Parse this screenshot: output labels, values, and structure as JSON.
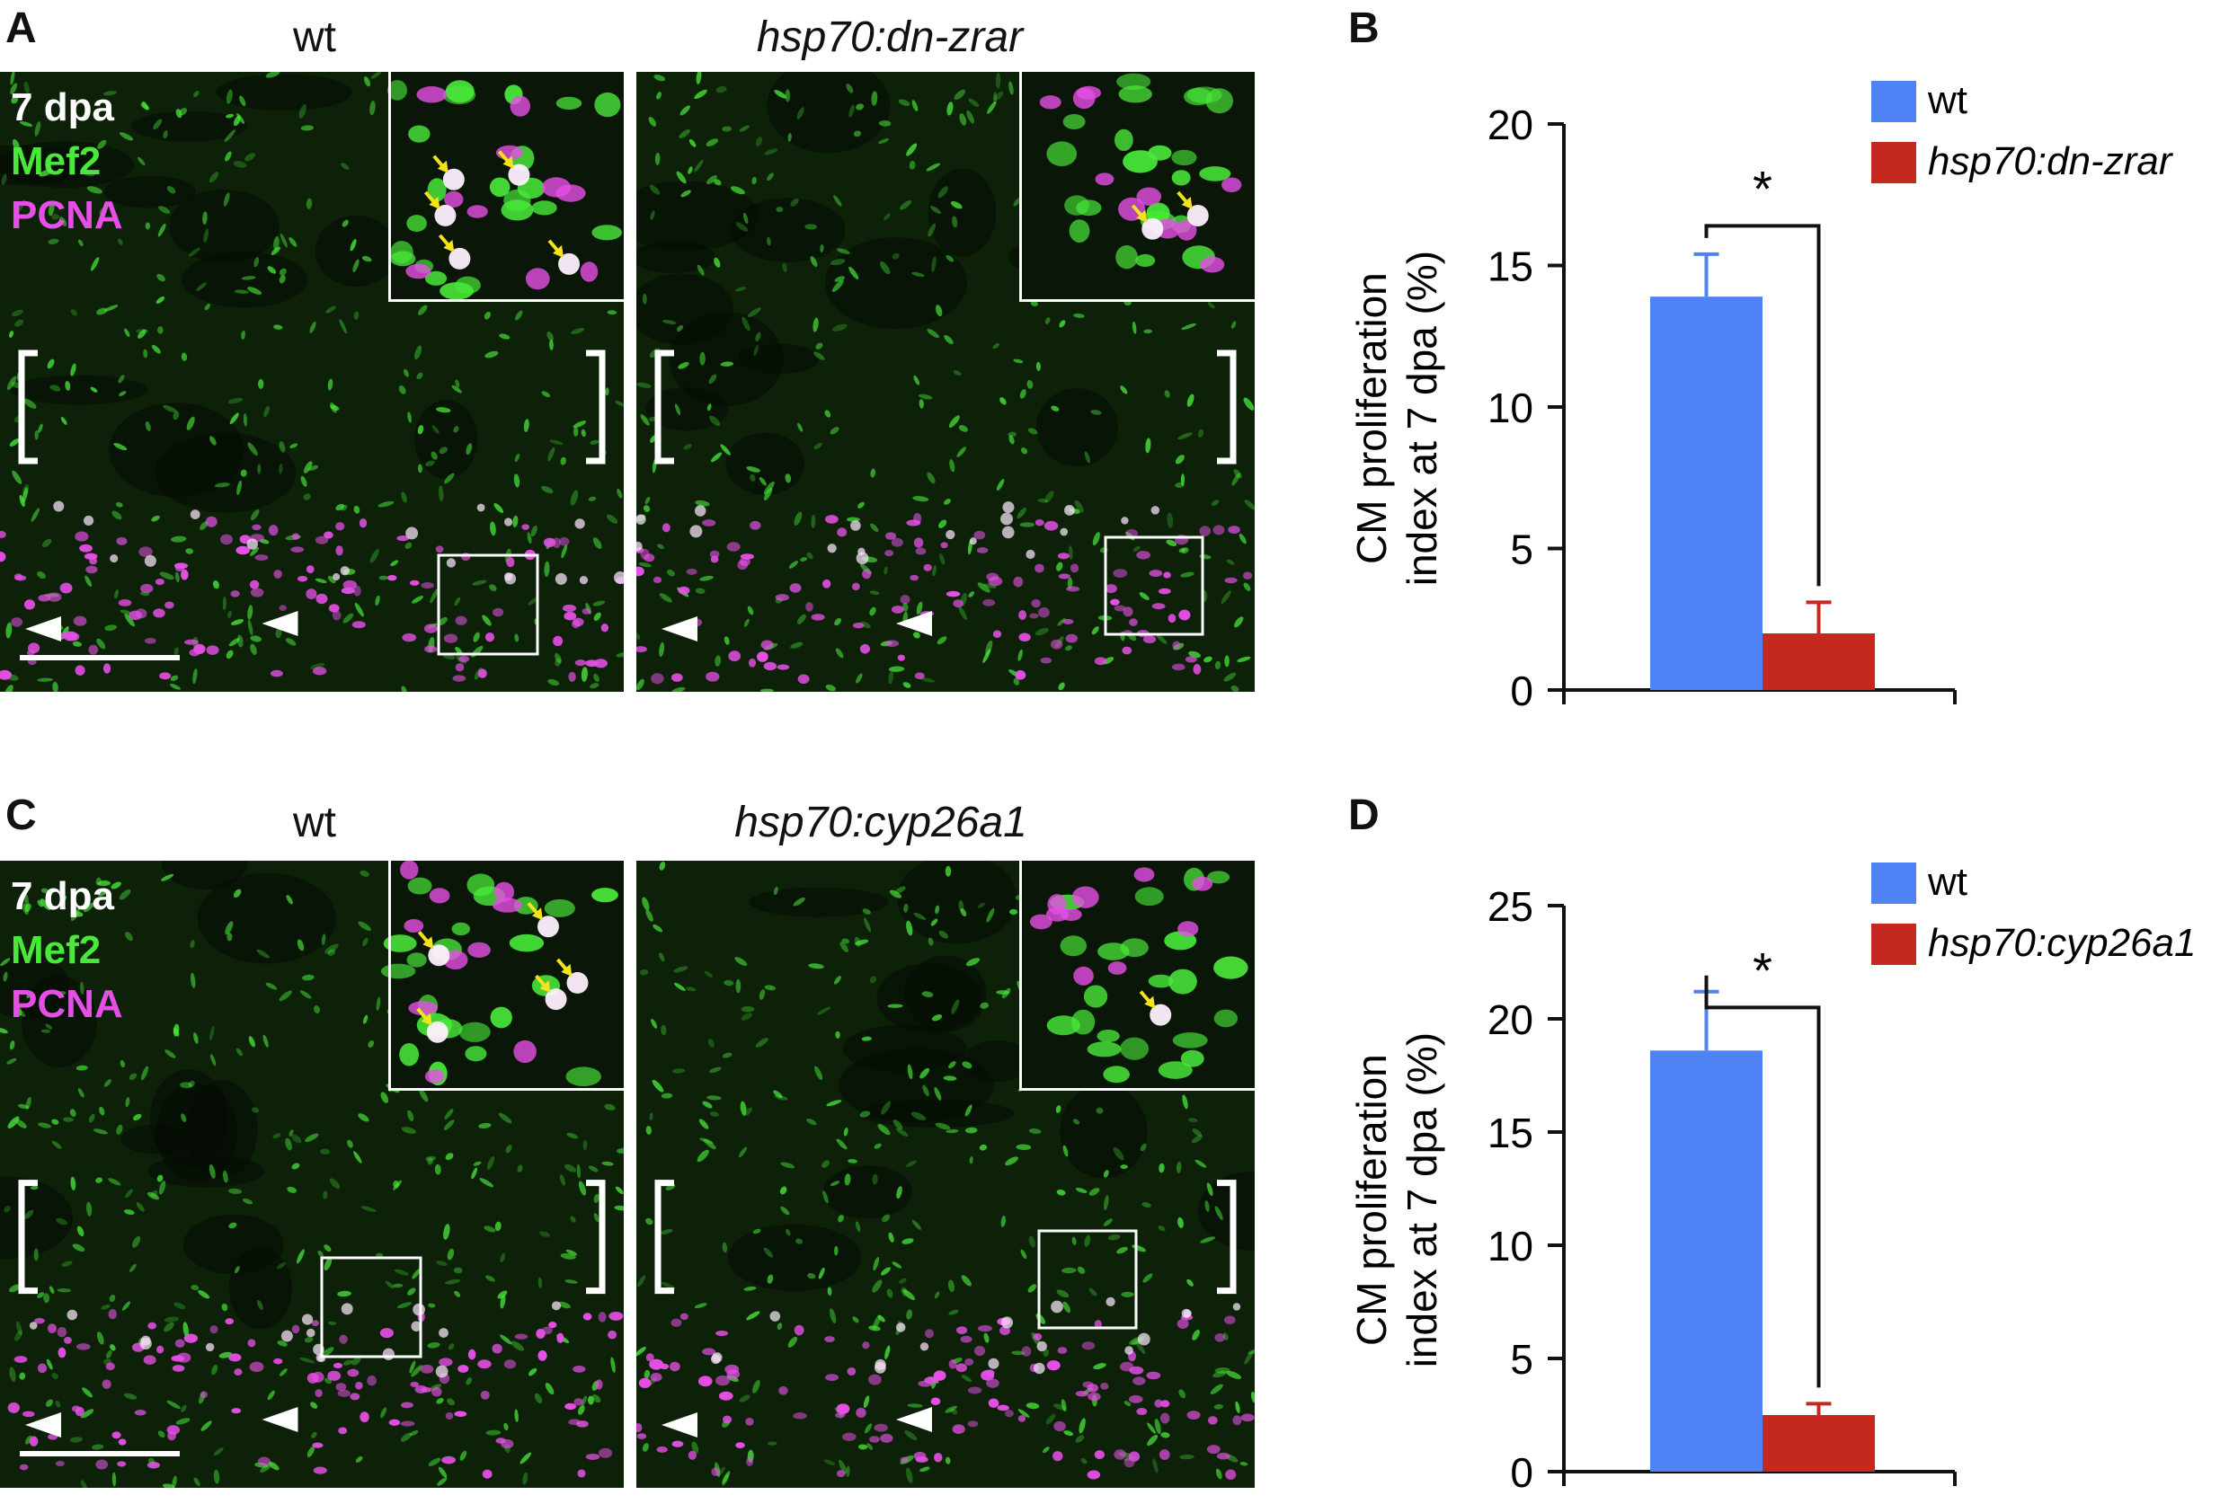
{
  "panels": {
    "A": "A",
    "B": "B",
    "C": "C",
    "D": "D"
  },
  "row1": {
    "titles": [
      "wt",
      "hsp70:dn-zrar"
    ],
    "stain": [
      "7 dpa",
      "Mef2",
      "PCNA"
    ]
  },
  "row2": {
    "titles": [
      "wt",
      "hsp70:cyp26a1"
    ],
    "stain": [
      "7 dpa",
      "Mef2",
      "PCNA"
    ]
  },
  "colors": {
    "wt": "#4f83f5",
    "mutant": "#c4281e",
    "mef2": "#49e83a",
    "pcna": "#e64fe6",
    "arrow": "#f4e21a"
  },
  "chart_data": [
    {
      "type": "bar",
      "panel": "B",
      "ylabel": "CM proliferation index at 7 dpa (%)",
      "ylim": [
        0,
        20
      ],
      "yticks": [
        "0",
        "5",
        "10",
        "15",
        "20"
      ],
      "significance": "*",
      "legend_position": "top-right",
      "series": [
        {
          "name": "wt",
          "value": 13.9,
          "error": 1.5
        },
        {
          "name": "hsp70:dn-zrar",
          "value": 2.0,
          "error": 1.1
        }
      ]
    },
    {
      "type": "bar",
      "panel": "D",
      "ylabel": "CM proliferation index at 7 dpa (%)",
      "ylim": [
        0,
        25
      ],
      "yticks": [
        "0",
        "5",
        "10",
        "15",
        "20",
        "25"
      ],
      "significance": "*",
      "legend_position": "top-right",
      "series": [
        {
          "name": "wt",
          "value": 18.6,
          "error": 2.6
        },
        {
          "name": "hsp70:cyp26a1",
          "value": 2.5,
          "error": 0.5
        }
      ]
    }
  ]
}
